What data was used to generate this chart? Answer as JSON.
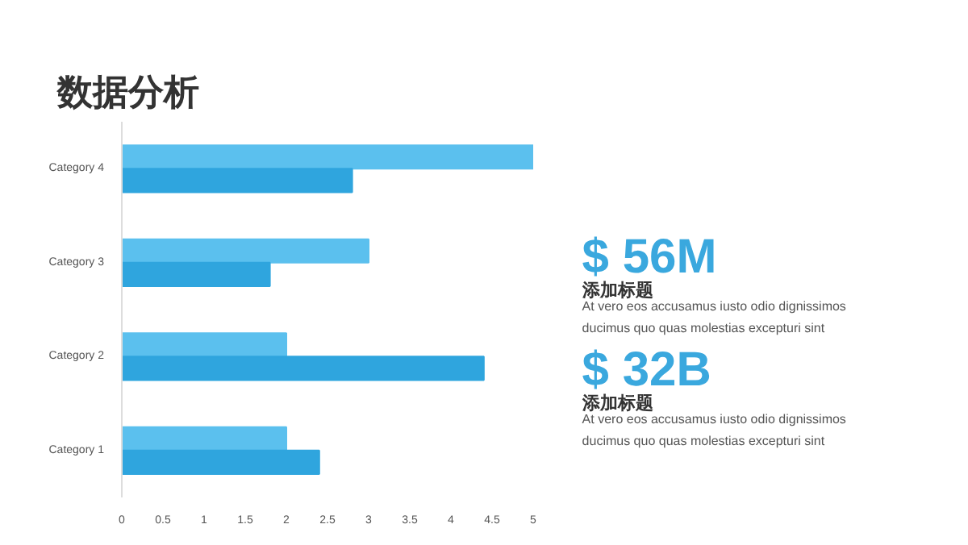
{
  "chart_data": [
    {
      "type": "bar",
      "title": "数据分析",
      "orientation": "horizontal",
      "categories": [
        "Category 4",
        "Category 3",
        "Category 2",
        "Category 1"
      ],
      "series": [
        {
          "color": "#5bc0ee",
          "values": [
            5,
            3,
            2,
            2
          ]
        },
        {
          "color": "#2fa5de",
          "values": [
            2.8,
            1.8,
            4.4,
            2.4
          ]
        }
      ],
      "xlim": [
        0,
        5
      ],
      "xticks": [
        0,
        0.5,
        1,
        1.5,
        2,
        2.5,
        3,
        3.5,
        4,
        4.5,
        5
      ],
      "grid": false
    },
    {
      "type": "other",
      "annotations": [
        "$ 56M",
        "添加标题",
        "At vero eos accusamus iusto odio dignissimos\nducimus quo quas molestias excepturi sint",
        "$ 32B",
        "添加标题",
        "At vero eos accusamus iusto odio dignissimos\nducimus quo quas molestias excepturi sint"
      ]
    }
  ]
}
